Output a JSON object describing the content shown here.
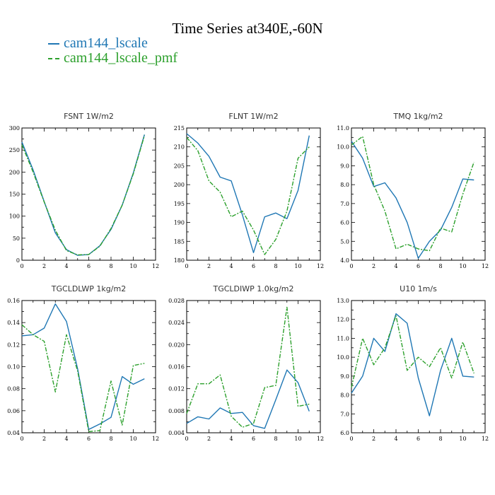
{
  "title": "Time Series at340E,-60N",
  "legend": [
    {
      "label": "cam144_lscale",
      "color": "#1f77b4"
    },
    {
      "label": "cam144_lscale_pmf",
      "color": "#2ca02c"
    }
  ],
  "colors": {
    "series1": "#1f77b4",
    "series2": "#2ca02c"
  },
  "chart_data": [
    {
      "type": "line",
      "title": "FSNT  1W/m2",
      "x": [
        0,
        1,
        2,
        3,
        4,
        5,
        6,
        7,
        8,
        9,
        10,
        11
      ],
      "xlim": [
        0,
        12
      ],
      "xticks": [
        "0",
        "2",
        "4",
        "6",
        "8",
        "10",
        "12"
      ],
      "ylim": [
        0,
        300
      ],
      "yticks": [
        "0",
        "50",
        "100",
        "150",
        "200",
        "250",
        "300"
      ],
      "series": [
        {
          "name": "cam144_lscale",
          "values": [
            268,
            205,
            133,
            62,
            24,
            11,
            13,
            33,
            70,
            125,
            198,
            285
          ]
        },
        {
          "name": "cam144_lscale_pmf",
          "values": [
            262,
            200,
            132,
            68,
            22,
            12,
            13,
            32,
            72,
            125,
            196,
            283
          ]
        }
      ]
    },
    {
      "type": "line",
      "title": "FLNT  1W/m2",
      "x": [
        0,
        1,
        2,
        3,
        4,
        5,
        6,
        7,
        8,
        9,
        10,
        11
      ],
      "xlim": [
        0,
        12
      ],
      "xticks": [
        "0",
        "2",
        "4",
        "6",
        "8",
        "10",
        "12"
      ],
      "ylim": [
        180,
        215
      ],
      "yticks": [
        "180",
        "185",
        "190",
        "195",
        "200",
        "205",
        "210",
        "215"
      ],
      "series": [
        {
          "name": "cam144_lscale",
          "values": [
            213.5,
            211,
            207.5,
            202,
            201,
            192,
            182,
            191.5,
            192.5,
            191,
            198.5,
            213
          ]
        },
        {
          "name": "cam144_lscale_pmf",
          "values": [
            212.5,
            209,
            201,
            198,
            191.5,
            193,
            188,
            181.5,
            185.5,
            193,
            207,
            210
          ]
        }
      ]
    },
    {
      "type": "line",
      "title": "TMQ  1kg/m2",
      "x": [
        0,
        1,
        2,
        3,
        4,
        5,
        6,
        7,
        8,
        9,
        10,
        11
      ],
      "xlim": [
        0,
        12
      ],
      "xticks": [
        "0",
        "2",
        "4",
        "6",
        "8",
        "10",
        "12"
      ],
      "ylim": [
        4.0,
        11.0
      ],
      "yticks": [
        "4.0",
        "5.0",
        "6.0",
        "7.0",
        "8.0",
        "9.0",
        "10.0",
        "11.0"
      ],
      "series": [
        {
          "name": "cam144_lscale",
          "values": [
            10.3,
            9.4,
            7.9,
            8.1,
            7.3,
            6.0,
            4.1,
            5.0,
            5.6,
            6.8,
            8.3,
            8.25
          ]
        },
        {
          "name": "cam144_lscale_pmf",
          "values": [
            10.1,
            10.55,
            8.0,
            6.6,
            4.6,
            4.85,
            4.6,
            4.5,
            5.7,
            5.5,
            7.5,
            9.2
          ]
        }
      ]
    },
    {
      "type": "line",
      "title": "TGCLDLWP  1kg/m2",
      "x": [
        0,
        1,
        2,
        3,
        4,
        5,
        6,
        7,
        8,
        9,
        10,
        11
      ],
      "xlim": [
        0,
        12
      ],
      "xticks": [
        "0",
        "2",
        "4",
        "6",
        "8",
        "10",
        "12"
      ],
      "ylim": [
        0.04,
        0.16
      ],
      "yticks": [
        "0.04",
        "0.06",
        "0.08",
        "0.10",
        "0.12",
        "0.14",
        "0.16"
      ],
      "series": [
        {
          "name": "cam144_lscale",
          "values": [
            0.128,
            0.129,
            0.135,
            0.157,
            0.141,
            0.098,
            0.043,
            0.048,
            0.054,
            0.091,
            0.084,
            0.089
          ]
        },
        {
          "name": "cam144_lscale_pmf",
          "values": [
            0.138,
            0.129,
            0.123,
            0.077,
            0.129,
            0.096,
            0.041,
            0.042,
            0.087,
            0.047,
            0.101,
            0.103
          ]
        }
      ]
    },
    {
      "type": "line",
      "title": "TGCLDIWP  1.0kg/m2",
      "x": [
        0,
        1,
        2,
        3,
        4,
        5,
        6,
        7,
        8,
        9,
        10,
        11
      ],
      "xlim": [
        0,
        12
      ],
      "xticks": [
        "0",
        "2",
        "4",
        "6",
        "8",
        "10",
        "12"
      ],
      "ylim": [
        0.004,
        0.028
      ],
      "yticks": [
        "0.004",
        "0.008",
        "0.012",
        "0.016",
        "0.020",
        "0.024",
        "0.028"
      ],
      "series": [
        {
          "name": "cam144_lscale",
          "values": [
            0.0057,
            0.0069,
            0.0065,
            0.0085,
            0.0075,
            0.0077,
            0.0053,
            0.0048,
            0.01,
            0.0154,
            0.0131,
            0.0079
          ]
        },
        {
          "name": "cam144_lscale_pmf",
          "values": [
            0.0075,
            0.0129,
            0.0129,
            0.0145,
            0.007,
            0.005,
            0.0057,
            0.0122,
            0.0126,
            0.0268,
            0.0088,
            0.0092
          ]
        }
      ]
    },
    {
      "type": "line",
      "title": "U10  1m/s",
      "x": [
        0,
        1,
        2,
        3,
        4,
        5,
        6,
        7,
        8,
        9,
        10,
        11
      ],
      "xlim": [
        0,
        12
      ],
      "xticks": [
        "0",
        "2",
        "4",
        "6",
        "8",
        "10",
        "12"
      ],
      "ylim": [
        6.0,
        13.0
      ],
      "yticks": [
        "6.0",
        "7.0",
        "8.0",
        "9.0",
        "10.0",
        "11.0",
        "12.0",
        "13.0"
      ],
      "series": [
        {
          "name": "cam144_lscale",
          "values": [
            8.1,
            9.0,
            11.0,
            10.3,
            12.3,
            11.8,
            8.9,
            6.9,
            9.3,
            11.0,
            9.0,
            8.95
          ]
        },
        {
          "name": "cam144_lscale_pmf",
          "values": [
            8.4,
            11.0,
            9.6,
            10.5,
            12.2,
            9.3,
            10.0,
            9.5,
            10.5,
            8.9,
            10.8,
            9.15
          ]
        }
      ]
    }
  ]
}
